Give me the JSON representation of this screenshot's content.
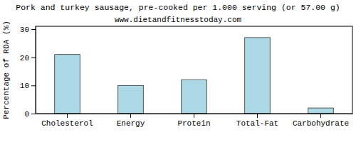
{
  "chart_data": {
    "type": "bar",
    "title": "Pork and turkey sausage, pre-cooked per 1.000 serving (or 57.00 g)",
    "subtitle": "www.dietandfitnesstoday.com",
    "y_label": "Percentage of RDA (%)",
    "categories": [
      "Cholesterol",
      "Energy",
      "Protein",
      "Total-Fat",
      "Carbohydrate"
    ],
    "values": [
      21,
      10,
      12,
      27,
      2
    ],
    "color": "#add8e6",
    "ylim": [
      0,
      31
    ],
    "yticks": [
      0,
      10,
      20,
      30
    ],
    "grid": false
  }
}
